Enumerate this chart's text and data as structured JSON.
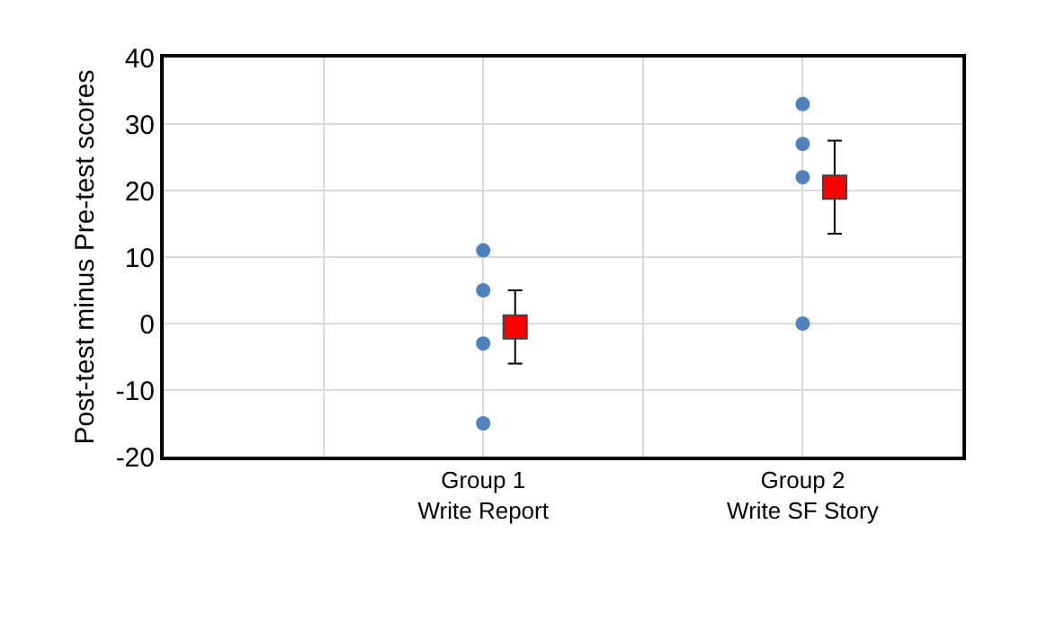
{
  "chart_data": {
    "type": "scatter",
    "ylabel": "Post-test minus Pre-test scores",
    "categories": [
      null,
      "Group 1\nWrite Report",
      null,
      "Group 2\nWrite SF Story"
    ],
    "ylim": [
      -20,
      40
    ],
    "yticks": [
      -20,
      -10,
      0,
      10,
      20,
      30,
      40
    ],
    "grid": true,
    "series": [
      {
        "color": "#4f81bd",
        "marker": "circle",
        "x": [
          "Group 1\nWrite Report",
          "Group 1\nWrite Report",
          "Group 1\nWrite Report",
          "Group 1\nWrite Report",
          "Group 2\nWrite SF Story",
          "Group 2\nWrite SF Story",
          "Group 2\nWrite SF Story",
          "Group 2\nWrite SF Story"
        ],
        "values": [
          11,
          5,
          -3,
          -15,
          33,
          27,
          22,
          0
        ]
      },
      {
        "color": "#ff0000",
        "marker": "square",
        "x": [
          "Group 1\nWrite Report",
          "Group 2\nWrite SF Story"
        ],
        "values": [
          -0.5,
          20.5
        ],
        "errors": [
          5.5,
          7
        ]
      }
    ]
  }
}
